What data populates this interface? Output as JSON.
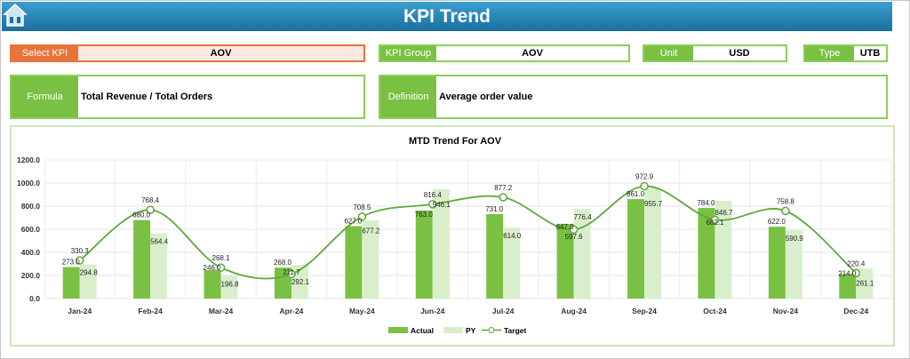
{
  "header": {
    "title": "KPI Trend",
    "home_icon": "home-icon"
  },
  "filters": {
    "select_kpi": {
      "label": "Select KPI",
      "value": "AOV"
    },
    "kpi_group": {
      "label": "KPI Group",
      "value": "AOV"
    },
    "unit": {
      "label": "Unit",
      "value": "USD"
    },
    "type": {
      "label": "Type",
      "value": "UTB"
    },
    "formula": {
      "label": "Formula",
      "value": "Total Revenue / Total Orders"
    },
    "definition": {
      "label": "Definition",
      "value": "Average order value"
    }
  },
  "colors": {
    "actual": "#7ac143",
    "py": "#d9efcc",
    "target": "#5fa83a",
    "select": "#e8743b",
    "header": "#1f7aab"
  },
  "chart_data": {
    "type": "bar",
    "title": "MTD Trend For AOV",
    "categories": [
      "Jan-24",
      "Feb-24",
      "Mar-24",
      "Apr-24",
      "May-24",
      "Jun-24",
      "Jul-24",
      "Aug-24",
      "Sep-24",
      "Oct-24",
      "Nov-24",
      "Dec-24"
    ],
    "series": [
      {
        "name": "Actual",
        "type": "bar",
        "values": [
          273.0,
          680.0,
          246.0,
          268.0,
          627.0,
          763.0,
          731.0,
          647.0,
          861.0,
          784.0,
          622.0,
          214.0
        ]
      },
      {
        "name": "PY",
        "type": "bar",
        "values": [
          294.8,
          564.4,
          196.8,
          292.1,
          677.2,
          946.1,
          614.0,
          776.4,
          955.7,
          846.7,
          590.9,
          261.1
        ]
      },
      {
        "name": "Target",
        "type": "line",
        "values": [
          330.3,
          768.4,
          268.1,
          211.7,
          708.5,
          816.4,
          877.2,
          597.6,
          972.9,
          682.1,
          758.8,
          220.4
        ]
      }
    ],
    "yticks": [
      "0.0",
      "200.0",
      "400.0",
      "600.0",
      "800.0",
      "1000.0",
      "1200.0"
    ],
    "ylim": [
      0,
      1200
    ],
    "grid": true,
    "legend": "bottom"
  }
}
